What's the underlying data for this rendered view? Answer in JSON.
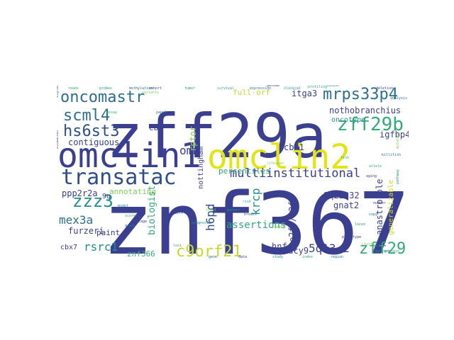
{
  "word_cloud": {
    "palette": {
      "navy": "#3b3f8f",
      "deep-blue": "#2f4f8b",
      "teal": "#2c6f8e",
      "cyan": "#22908c",
      "green": "#33aa78",
      "yellow-green": "#c7d82c",
      "yellow": "#e3e418",
      "lime": "#7fcf55"
    },
    "words": [
      {
        "text": "znf367",
        "color": "navy"
      },
      {
        "text": "zff29a",
        "color": "navy"
      },
      {
        "text": "omclin1",
        "color": "navy"
      },
      {
        "text": "omclin2",
        "color": "yellow"
      },
      {
        "text": "transatac",
        "color": "deep-blue"
      },
      {
        "text": "oncomastr",
        "color": "teal"
      },
      {
        "text": "mrps33p4",
        "color": "teal"
      },
      {
        "text": "zff29b",
        "color": "green"
      },
      {
        "text": "scml4",
        "color": "teal"
      },
      {
        "text": "hs6st3",
        "color": "deep-blue"
      },
      {
        "text": "c9orf21",
        "color": "yellow-green"
      },
      {
        "text": "zff29",
        "color": "green"
      },
      {
        "text": "multiinstitutional",
        "color": "navy"
      },
      {
        "text": "zzz3",
        "color": "cyan"
      },
      {
        "text": "mex3a",
        "color": "teal"
      },
      {
        "text": "rsrc1",
        "color": "cyan"
      },
      {
        "text": "omm",
        "color": "navy"
      },
      {
        "text": "h6pd",
        "color": "deep-blue"
      },
      {
        "text": "krcp",
        "color": "cyan"
      },
      {
        "text": "nothobranchius",
        "color": "navy"
      },
      {
        "text": "itga3",
        "color": "navy"
      },
      {
        "text": "igfbp4",
        "color": "navy"
      },
      {
        "text": "5q13.2",
        "color": "navy"
      },
      {
        "text": "anastrozole",
        "color": "navy"
      },
      {
        "text": "9q22.32",
        "color": "navy"
      },
      {
        "text": "gnat2",
        "color": "navy"
      },
      {
        "text": "cbx1",
        "color": "navy"
      },
      {
        "text": "e2f7/e2f8",
        "color": "navy"
      },
      {
        "text": "adcy9",
        "color": "navy"
      },
      {
        "text": "hnf4g",
        "color": "navy"
      },
      {
        "text": "assertions",
        "color": "green"
      },
      {
        "text": "percentiles",
        "color": "green"
      },
      {
        "text": "rptor",
        "color": "lime"
      },
      {
        "text": "furzeri",
        "color": "navy"
      },
      {
        "text": "cbx7",
        "color": "navy"
      },
      {
        "text": "znf366",
        "color": "green"
      },
      {
        "text": "contiguous",
        "color": "navy"
      },
      {
        "text": "ppp2r2a",
        "color": "navy"
      },
      {
        "text": "annotating",
        "color": "lime"
      },
      {
        "text": "biologist",
        "color": "green"
      },
      {
        "text": "oncotype",
        "color": "cyan"
      },
      {
        "text": "generalizable",
        "color": "yellow-green"
      },
      {
        "text": "paint",
        "color": "navy"
      },
      {
        "text": "cbx",
        "color": "navy"
      },
      {
        "text": "full-orf",
        "color": "yellow-green"
      },
      {
        "text": "nottingham",
        "color": "navy"
      },
      {
        "text": "9q",
        "color": "navy"
      },
      {
        "text": "reads",
        "color": "green"
      },
      {
        "text": "probes",
        "color": "cyan"
      },
      {
        "text": "methylation",
        "color": "teal"
      },
      {
        "text": "variants",
        "color": "lime"
      },
      {
        "text": "cohort",
        "color": "navy"
      },
      {
        "text": "tumor",
        "color": "cyan"
      },
      {
        "text": "survival",
        "color": "green"
      },
      {
        "text": "expression",
        "color": "teal"
      },
      {
        "text": "genome",
        "color": "navy"
      },
      {
        "text": "clinical",
        "color": "cyan"
      },
      {
        "text": "profiling",
        "color": "green"
      },
      {
        "text": "signature",
        "color": "teal"
      },
      {
        "text": "biomarker",
        "color": "navy"
      },
      {
        "text": "mutation",
        "color": "lime"
      },
      {
        "text": "pathway",
        "color": "cyan"
      },
      {
        "text": "assay",
        "color": "green"
      },
      {
        "text": "panel",
        "color": "teal"
      },
      {
        "text": "cell",
        "color": "navy"
      },
      {
        "text": "prognosis",
        "color": "cyan"
      },
      {
        "text": "risk",
        "color": "green"
      },
      {
        "text": "breast",
        "color": "teal"
      },
      {
        "text": "array",
        "color": "navy"
      },
      {
        "text": "sample",
        "color": "lime"
      },
      {
        "text": "locus",
        "color": "cyan"
      },
      {
        "text": "allele",
        "color": "green"
      },
      {
        "text": "copy",
        "color": "teal"
      },
      {
        "text": "number",
        "color": "navy"
      },
      {
        "text": "model",
        "color": "cyan"
      },
      {
        "text": "score",
        "color": "green"
      },
      {
        "text": "grade",
        "color": "teal"
      },
      {
        "text": "stage",
        "color": "navy"
      },
      {
        "text": "trial",
        "color": "lime"
      },
      {
        "text": "marker",
        "color": "cyan"
      },
      {
        "text": "loci",
        "color": "green"
      },
      {
        "text": "gene",
        "color": "teal"
      },
      {
        "text": "data",
        "color": "navy"
      },
      {
        "text": "study",
        "color": "cyan"
      },
      {
        "text": "index",
        "color": "green"
      },
      {
        "text": "region",
        "color": "teal"
      },
      {
        "text": "phenotype",
        "color": "navy"
      },
      {
        "text": "cluster",
        "color": "lime"
      },
      {
        "text": "dataset",
        "color": "cyan"
      },
      {
        "text": "protein",
        "color": "green"
      },
      {
        "text": "analysis",
        "color": "teal"
      },
      {
        "text": "deletion",
        "color": "navy"
      },
      {
        "text": "fusion",
        "color": "cyan"
      },
      {
        "text": "fish",
        "color": "green"
      },
      {
        "text": "killifish",
        "color": "teal"
      },
      {
        "text": "aging",
        "color": "navy"
      },
      {
        "text": "lifespan",
        "color": "lime"
      }
    ]
  }
}
